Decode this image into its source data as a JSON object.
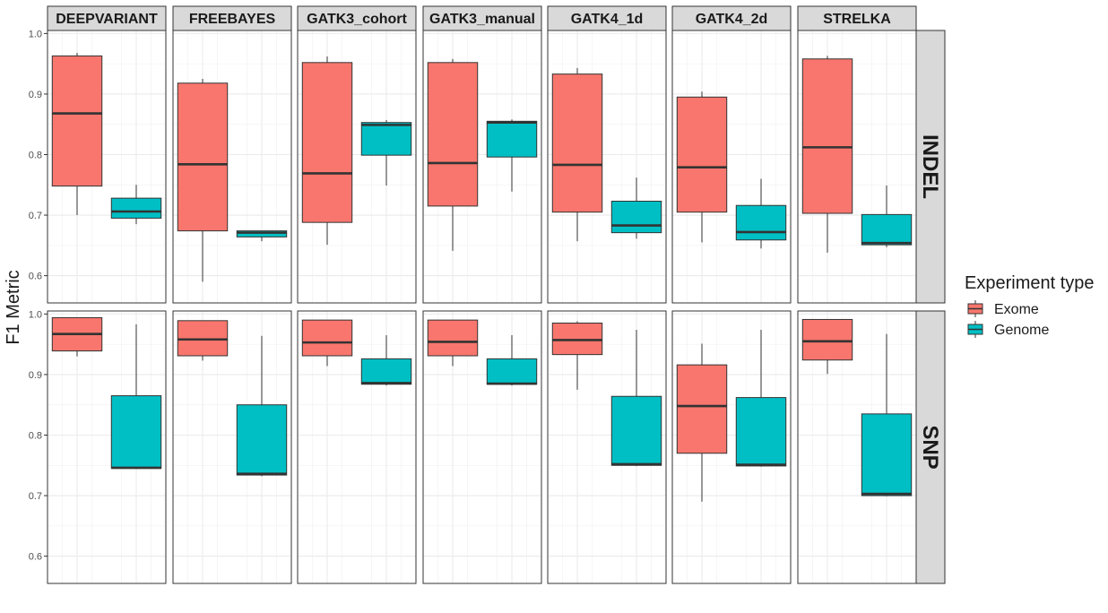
{
  "chart_data": {
    "type": "boxplot",
    "ylabel": "F1 Metric",
    "xlabel": "",
    "ylim": [
      0.555,
      1.005
    ],
    "yticks": [
      "0.6",
      "0.7",
      "0.8",
      "0.9",
      "1.0"
    ],
    "column_facets": [
      "DEEPVARIANT",
      "FREEBAYES",
      "GATK3_cohort",
      "GATK3_manual",
      "GATK4_1d",
      "GATK4_2d",
      "STRELKA"
    ],
    "row_facets": [
      "INDEL",
      "SNP"
    ],
    "legend": {
      "title": "Experiment type",
      "position": "right",
      "entries": [
        {
          "name": "Exome",
          "color": "#F8766D"
        },
        {
          "name": "Genome",
          "color": "#00BFC4"
        }
      ]
    },
    "grid": true,
    "boxes": {
      "INDEL": [
        {
          "caller": "DEEPVARIANT",
          "Exome": {
            "min": 0.7,
            "q1": 0.748,
            "median": 0.868,
            "q3": 0.963,
            "max": 0.968
          },
          "Genome": {
            "min": 0.685,
            "q1": 0.695,
            "median": 0.706,
            "q3": 0.728,
            "max": 0.75
          }
        },
        {
          "caller": "FREEBAYES",
          "Exome": {
            "min": 0.59,
            "q1": 0.674,
            "median": 0.784,
            "q3": 0.918,
            "max": 0.925
          },
          "Genome": {
            "min": 0.657,
            "q1": 0.664,
            "median": 0.671,
            "q3": 0.674,
            "max": 0.674
          }
        },
        {
          "caller": "GATK3_cohort",
          "Exome": {
            "min": 0.651,
            "q1": 0.688,
            "median": 0.769,
            "q3": 0.952,
            "max": 0.962
          },
          "Genome": {
            "min": 0.749,
            "q1": 0.799,
            "median": 0.849,
            "q3": 0.853,
            "max": 0.857
          }
        },
        {
          "caller": "GATK3_manual",
          "Exome": {
            "min": 0.641,
            "q1": 0.715,
            "median": 0.786,
            "q3": 0.952,
            "max": 0.958
          },
          "Genome": {
            "min": 0.739,
            "q1": 0.796,
            "median": 0.853,
            "q3": 0.855,
            "max": 0.858
          }
        },
        {
          "caller": "GATK4_1d",
          "Exome": {
            "min": 0.657,
            "q1": 0.705,
            "median": 0.783,
            "q3": 0.933,
            "max": 0.943
          },
          "Genome": {
            "min": 0.661,
            "q1": 0.671,
            "median": 0.683,
            "q3": 0.723,
            "max": 0.762
          }
        },
        {
          "caller": "GATK4_2d",
          "Exome": {
            "min": 0.655,
            "q1": 0.705,
            "median": 0.779,
            "q3": 0.895,
            "max": 0.904
          },
          "Genome": {
            "min": 0.645,
            "q1": 0.659,
            "median": 0.672,
            "q3": 0.716,
            "max": 0.76
          }
        },
        {
          "caller": "STRELKA",
          "Exome": {
            "min": 0.638,
            "q1": 0.703,
            "median": 0.812,
            "q3": 0.958,
            "max": 0.963
          },
          "Genome": {
            "min": 0.647,
            "q1": 0.651,
            "median": 0.654,
            "q3": 0.701,
            "max": 0.749
          }
        }
      ],
      "SNP": [
        {
          "caller": "DEEPVARIANT",
          "Exome": {
            "min": 0.93,
            "q1": 0.939,
            "median": 0.967,
            "q3": 0.994,
            "max": 0.994
          },
          "Genome": {
            "min": 0.744,
            "q1": 0.745,
            "median": 0.746,
            "q3": 0.865,
            "max": 0.983
          }
        },
        {
          "caller": "FREEBAYES",
          "Exome": {
            "min": 0.923,
            "q1": 0.931,
            "median": 0.958,
            "q3": 0.989,
            "max": 0.989
          },
          "Genome": {
            "min": 0.732,
            "q1": 0.734,
            "median": 0.736,
            "q3": 0.85,
            "max": 0.964
          }
        },
        {
          "caller": "GATK3_cohort",
          "Exome": {
            "min": 0.914,
            "q1": 0.931,
            "median": 0.953,
            "q3": 0.99,
            "max": 0.99
          },
          "Genome": {
            "min": 0.882,
            "q1": 0.884,
            "median": 0.886,
            "q3": 0.926,
            "max": 0.965
          }
        },
        {
          "caller": "GATK3_manual",
          "Exome": {
            "min": 0.914,
            "q1": 0.931,
            "median": 0.954,
            "q3": 0.99,
            "max": 0.99
          },
          "Genome": {
            "min": 0.882,
            "q1": 0.884,
            "median": 0.885,
            "q3": 0.926,
            "max": 0.965
          }
        },
        {
          "caller": "GATK4_1d",
          "Exome": {
            "min": 0.875,
            "q1": 0.933,
            "median": 0.957,
            "q3": 0.985,
            "max": 0.988
          },
          "Genome": {
            "min": 0.749,
            "q1": 0.75,
            "median": 0.752,
            "q3": 0.864,
            "max": 0.974
          }
        },
        {
          "caller": "GATK4_2d",
          "Exome": {
            "min": 0.69,
            "q1": 0.77,
            "median": 0.848,
            "q3": 0.916,
            "max": 0.951
          },
          "Genome": {
            "min": 0.748,
            "q1": 0.749,
            "median": 0.751,
            "q3": 0.862,
            "max": 0.974
          }
        },
        {
          "caller": "STRELKA",
          "Exome": {
            "min": 0.901,
            "q1": 0.924,
            "median": 0.955,
            "q3": 0.991,
            "max": 0.991
          },
          "Genome": {
            "min": 0.699,
            "q1": 0.7,
            "median": 0.703,
            "q3": 0.835,
            "max": 0.967
          }
        }
      ]
    }
  }
}
